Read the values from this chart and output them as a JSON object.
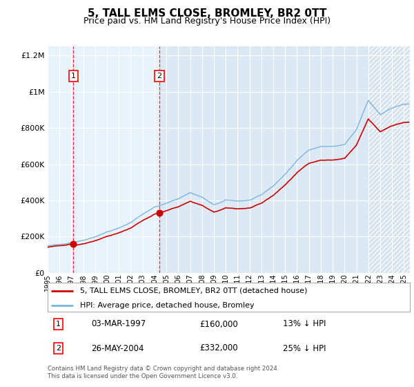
{
  "title": "5, TALL ELMS CLOSE, BROMLEY, BR2 0TT",
  "subtitle": "Price paid vs. HM Land Registry's House Price Index (HPI)",
  "title_fontsize": 11,
  "subtitle_fontsize": 9,
  "background_color": "#ffffff",
  "plot_bg_color": "#dce9f5",
  "plot_bg_color_light": "#eaf1f9",
  "grid_color": "#ffffff",
  "hpi_line_color": "#7ab5e0",
  "price_line_color": "#cc0000",
  "sale1_x": 1997.17,
  "sale2_x": 2004.42,
  "sale1_price": 160000,
  "sale2_price": 332000,
  "sale1_date_str": "03-MAR-1997",
  "sale2_date_str": "26-MAY-2004",
  "sale1_pct": "13% ↓ HPI",
  "sale2_pct": "25% ↓ HPI",
  "legend_line1": "5, TALL ELMS CLOSE, BROMLEY, BR2 0TT (detached house)",
  "legend_line2": "HPI: Average price, detached house, Bromley",
  "footer": "Contains HM Land Registry data © Crown copyright and database right 2024.\nThis data is licensed under the Open Government Licence v3.0.",
  "shade1_start": 1995.0,
  "shade1_end": 2004.42,
  "shade2_start": 2022.0,
  "shade2_end": 2025.5,
  "xlim_start": 1995.0,
  "xlim_end": 2025.5,
  "ylim": [
    0,
    1250000
  ],
  "yticks": [
    0,
    200000,
    400000,
    600000,
    800000,
    1000000,
    1200000
  ],
  "ytick_labels": [
    "£0",
    "£200K",
    "£400K",
    "£600K",
    "£800K",
    "£1M",
    "£1.2M"
  ],
  "xtick_years": [
    1995,
    1996,
    1997,
    1998,
    1999,
    2000,
    2001,
    2002,
    2003,
    2004,
    2005,
    2006,
    2007,
    2008,
    2009,
    2010,
    2011,
    2012,
    2013,
    2014,
    2015,
    2016,
    2017,
    2018,
    2019,
    2020,
    2021,
    2022,
    2023,
    2024,
    2025
  ]
}
